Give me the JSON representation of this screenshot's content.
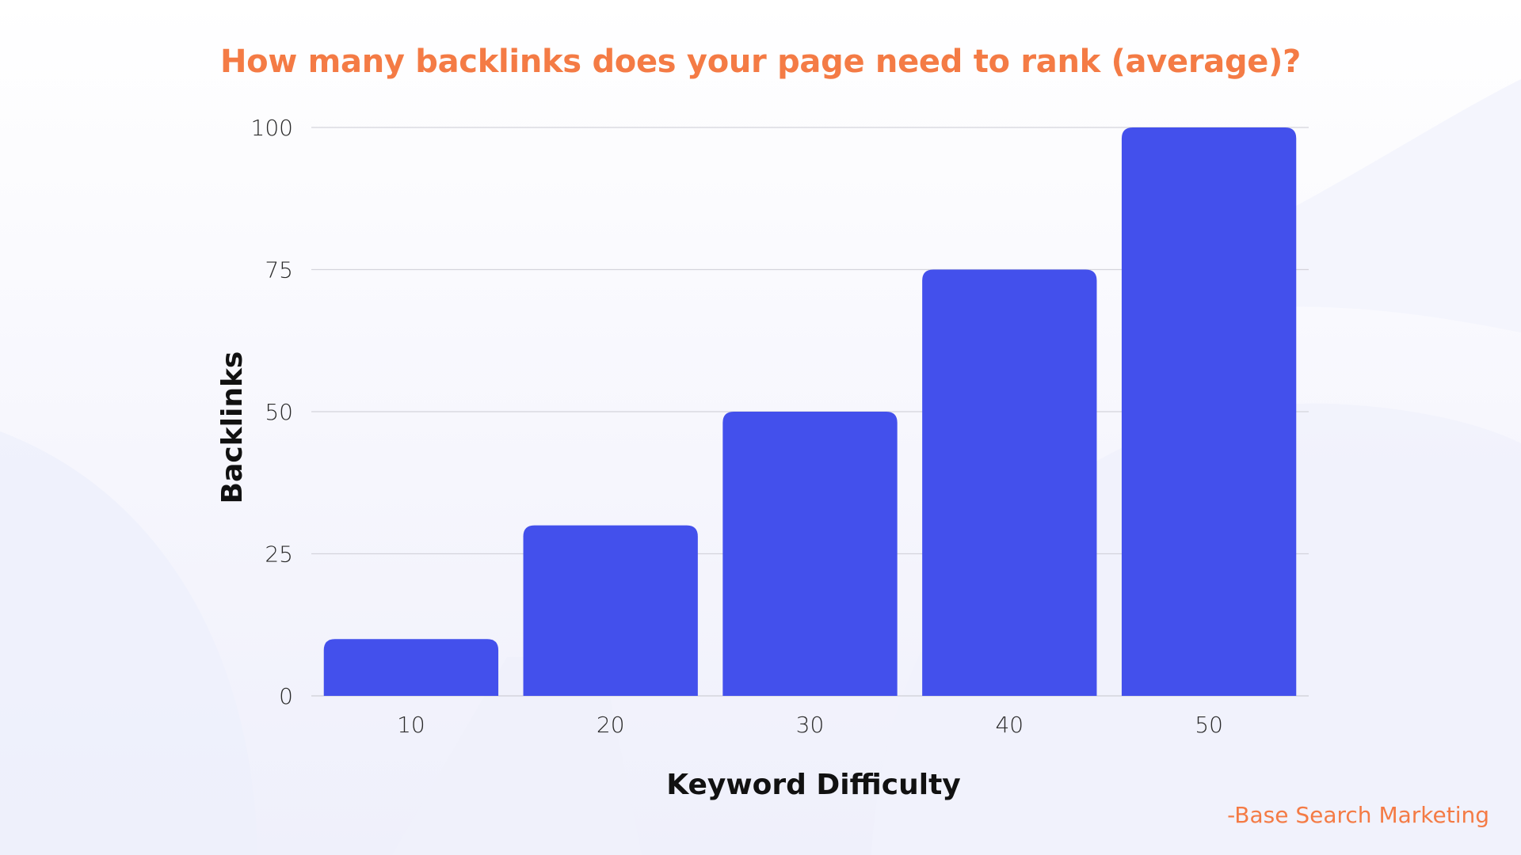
{
  "colors": {
    "title": "#f47b45",
    "bar": "#4350ec",
    "grid": "#d4d4dc",
    "axis_text": "#2b2b2b",
    "credit": "#f47b45"
  },
  "credit": "-Base Search Marketing",
  "chart_data": {
    "type": "bar",
    "title": "How many backlinks does your page need to rank (average)?",
    "xlabel": "Keyword Difficulty",
    "ylabel": "Backlinks",
    "categories": [
      "10",
      "20",
      "30",
      "40",
      "50"
    ],
    "values": [
      10,
      30,
      50,
      75,
      100
    ],
    "ylim": [
      0,
      100
    ],
    "yticks": [
      0,
      25,
      50,
      75,
      100
    ],
    "grid": true,
    "legend": "none"
  }
}
